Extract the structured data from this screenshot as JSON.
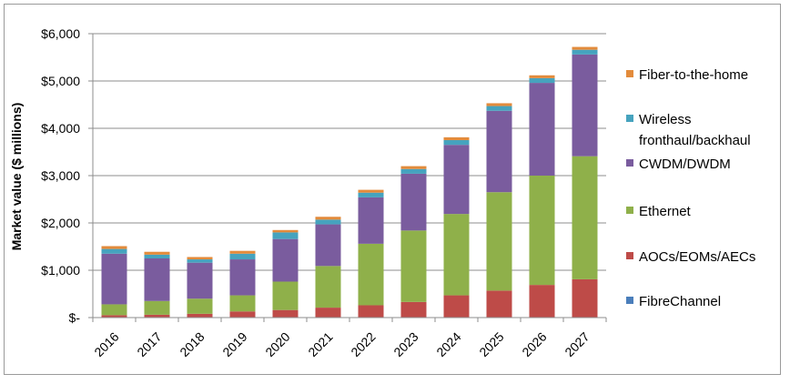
{
  "chart_data": {
    "type": "bar",
    "stacked": true,
    "ylabel": "Market value ($ millions)",
    "ylim": [
      0,
      6000
    ],
    "yticks": [
      {
        "value": 0,
        "label": "$-"
      },
      {
        "value": 1000,
        "label": "$1,000"
      },
      {
        "value": 2000,
        "label": "$2,000"
      },
      {
        "value": 3000,
        "label": "$3,000"
      },
      {
        "value": 4000,
        "label": "$4,000"
      },
      {
        "value": 5000,
        "label": "$5,000"
      },
      {
        "value": 6000,
        "label": "$6,000"
      }
    ],
    "grid": true,
    "legend_position": "right",
    "categories": [
      "2016",
      "2017",
      "2018",
      "2019",
      "2020",
      "2021",
      "2022",
      "2023",
      "2024",
      "2025",
      "2026",
      "2027"
    ],
    "series": [
      {
        "name": "FibreChannel",
        "color": "#4a7ebb",
        "values": [
          10,
          10,
          10,
          10,
          10,
          10,
          10,
          10,
          10,
          10,
          10,
          10
        ]
      },
      {
        "name": "AOCs/EOMs/AECs",
        "color": "#be4b48",
        "values": [
          40,
          50,
          70,
          120,
          150,
          200,
          250,
          320,
          460,
          560,
          680,
          800
        ]
      },
      {
        "name": "Ethernet",
        "color": "#8fb04a",
        "values": [
          230,
          290,
          320,
          340,
          600,
          880,
          1300,
          1510,
          1720,
          2080,
          2310,
          2600
        ]
      },
      {
        "name": "CWDM/DWDM",
        "color": "#7a5c9e",
        "values": [
          1070,
          900,
          760,
          760,
          900,
          880,
          980,
          1200,
          1460,
          1720,
          1960,
          2150
        ]
      },
      {
        "name": "Wireless fronthaul/backhaul",
        "color": "#46a3be",
        "values": [
          100,
          80,
          70,
          120,
          140,
          100,
          100,
          100,
          100,
          100,
          100,
          100
        ]
      },
      {
        "name": "Fiber-to-the-home",
        "color": "#e38b3b",
        "values": [
          60,
          60,
          50,
          60,
          50,
          60,
          60,
          60,
          60,
          60,
          60,
          60
        ]
      }
    ],
    "legend": [
      {
        "series": "Fiber-to-the-home",
        "lines": [
          "Fiber-to-the-home"
        ]
      },
      {
        "series": "Wireless fronthaul/backhaul",
        "lines": [
          "Wireless",
          "fronthaul/backhaul"
        ]
      },
      {
        "series": "CWDM/DWDM",
        "lines": [
          "CWDM/DWDM"
        ]
      },
      {
        "series": "Ethernet",
        "lines": [
          "Ethernet"
        ]
      },
      {
        "series": "AOCs/EOMs/AECs",
        "lines": [
          "AOCs/EOMs/AECs"
        ]
      },
      {
        "series": "FibreChannel",
        "lines": [
          "FibreChannel"
        ]
      }
    ]
  }
}
